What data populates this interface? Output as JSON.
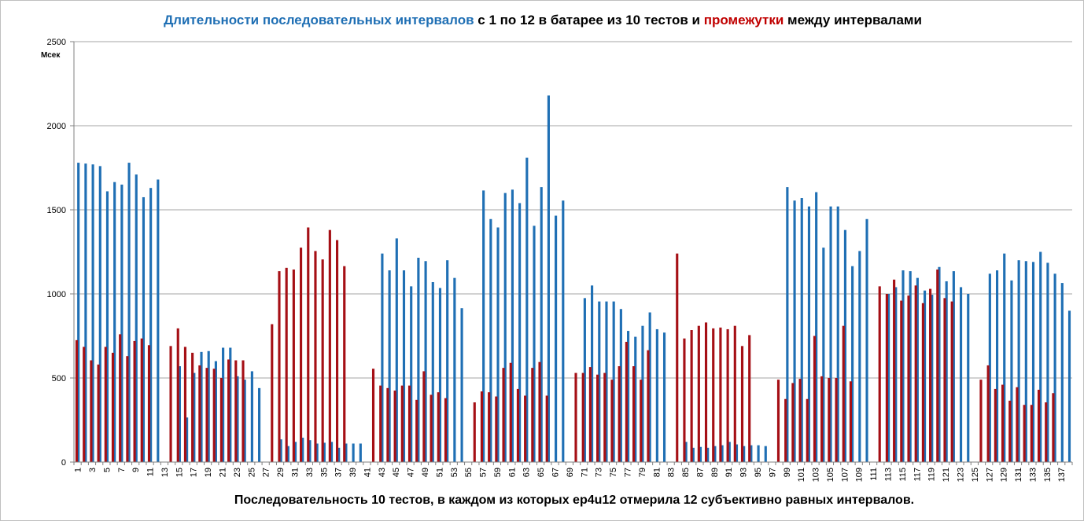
{
  "chart_data": {
    "type": "bar",
    "title_parts": [
      {
        "text": "Длительности последовательных интервалов",
        "color": "#1f6fb4"
      },
      {
        "text": " с 1 по 12 в батарее из 10 тестов и ",
        "color": "#000000"
      },
      {
        "text": "промежутки",
        "color": "#c00000"
      },
      {
        "text": " между интервалами",
        "color": "#000000"
      }
    ],
    "xlabel": "Последовательность  10 тестов, в каждом из которых ep4u12 отмерила 12 субъективно равных интервалов.",
    "ylabel": "Мсек",
    "ylim": [
      0,
      2500
    ],
    "yticks": [
      0,
      500,
      1000,
      1500,
      2000,
      2500
    ],
    "grid": true,
    "x_count": 138,
    "x_tick_labels": [
      1,
      3,
      5,
      7,
      9,
      11,
      13,
      15,
      17,
      19,
      21,
      23,
      25,
      27,
      29,
      31,
      33,
      35,
      37,
      39,
      41,
      43,
      45,
      47,
      49,
      51,
      53,
      55,
      57,
      59,
      61,
      63,
      65,
      67,
      69,
      71,
      73,
      75,
      77,
      79,
      81,
      83,
      85,
      87,
      89,
      91,
      93,
      95,
      97,
      99,
      101,
      103,
      105,
      107,
      109,
      111,
      113,
      115,
      117,
      119,
      121,
      123,
      125,
      127,
      129,
      131,
      133,
      135,
      137
    ],
    "colors": {
      "intervals": "#1f6fb4",
      "gaps": "#a50f15",
      "grid": "#a6a6a6",
      "axis": "#808080"
    },
    "series": [
      {
        "key": "intervals",
        "values": [
          1780,
          1775,
          1770,
          1760,
          1610,
          1665,
          1650,
          1780,
          1710,
          1575,
          1630,
          1680,
          0,
          0,
          570,
          265,
          530,
          655,
          660,
          600,
          680,
          680,
          510,
          490,
          540,
          440,
          0,
          0,
          135,
          95,
          120,
          145,
          130,
          110,
          115,
          120,
          85,
          110,
          110,
          110,
          0,
          0,
          1240,
          1140,
          1330,
          1140,
          1045,
          1215,
          1195,
          1070,
          1035,
          1200,
          1095,
          915,
          0,
          0,
          1615,
          1445,
          1395,
          1600,
          1620,
          1540,
          1810,
          1405,
          1635,
          2180,
          1465,
          1555,
          0,
          0,
          975,
          1050,
          955,
          955,
          955,
          910,
          780,
          745,
          810,
          890,
          790,
          770,
          0,
          0,
          120,
          85,
          90,
          85,
          95,
          100,
          120,
          105,
          95,
          100,
          100,
          95,
          0,
          0,
          1635,
          1555,
          1570,
          1520,
          1605,
          1275,
          1520,
          1520,
          1380,
          1165,
          1255,
          1445,
          0,
          0,
          1000,
          1040,
          1140,
          1135,
          1095,
          1020,
          995,
          1160,
          1075,
          1135,
          1040,
          1000,
          0,
          0,
          1120,
          1140,
          1240,
          1080,
          1200,
          1195,
          1190,
          1250,
          1185,
          1120,
          1065,
          900
        ]
      },
      {
        "key": "gaps",
        "values": [
          725,
          685,
          605,
          580,
          685,
          650,
          760,
          630,
          720,
          735,
          695,
          0,
          0,
          690,
          795,
          685,
          650,
          575,
          560,
          555,
          500,
          610,
          605,
          605,
          0,
          0,
          0,
          820,
          1135,
          1155,
          1145,
          1275,
          1395,
          1255,
          1205,
          1380,
          1320,
          1165,
          0,
          0,
          0,
          555,
          455,
          440,
          425,
          455,
          455,
          370,
          540,
          400,
          415,
          380,
          0,
          0,
          0,
          355,
          420,
          415,
          390,
          560,
          590,
          435,
          395,
          560,
          595,
          395,
          0,
          0,
          0,
          530,
          530,
          565,
          520,
          530,
          490,
          570,
          715,
          570,
          490,
          665,
          0,
          0,
          0,
          1240,
          735,
          785,
          810,
          830,
          795,
          800,
          790,
          810,
          690,
          755,
          0,
          0,
          0,
          490,
          375,
          470,
          495,
          375,
          750,
          510,
          500,
          500,
          810,
          480,
          0,
          0,
          0,
          1045,
          1000,
          1085,
          960,
          990,
          1050,
          945,
          1030,
          1145,
          975,
          955,
          0,
          0,
          0,
          490,
          575,
          435,
          460,
          365,
          445,
          340,
          340,
          430,
          355,
          410,
          0
        ]
      }
    ]
  }
}
